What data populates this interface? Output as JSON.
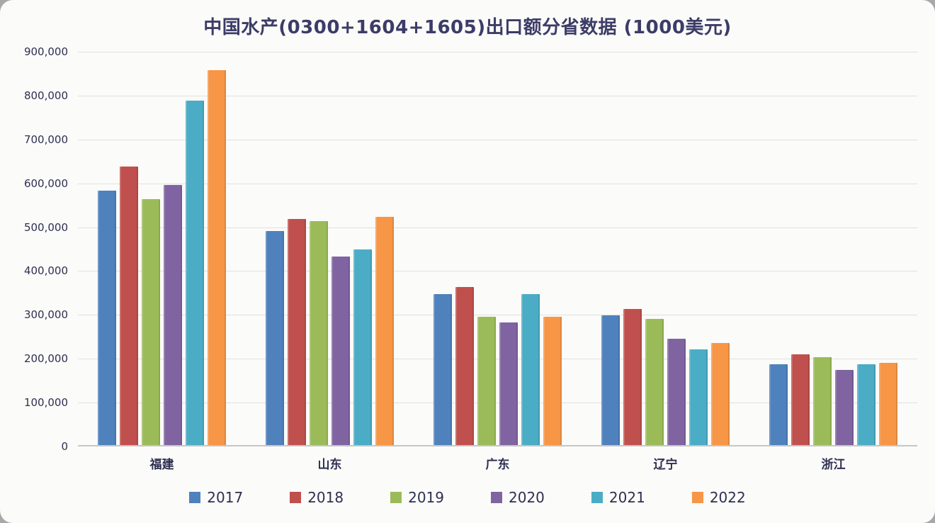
{
  "title": "中国水产(0300+1604+1605)出口额分省数据 (1000美元)",
  "chart_data": {
    "type": "bar",
    "title": "中国水产(0300+1604+1605)出口额分省数据 (1000美元)",
    "categories": [
      "福建",
      "山东",
      "广东",
      "辽宁",
      "浙江"
    ],
    "series": [
      {
        "name": "2017",
        "color": "#4F81BD",
        "values": [
          580000,
          488000,
          344000,
          295000,
          185000
        ]
      },
      {
        "name": "2018",
        "color": "#C0504D",
        "values": [
          635000,
          515000,
          360000,
          310000,
          207000
        ]
      },
      {
        "name": "2019",
        "color": "#9BBB59",
        "values": [
          560000,
          510000,
          292000,
          287000,
          200000
        ]
      },
      {
        "name": "2020",
        "color": "#8064A2",
        "values": [
          593000,
          430000,
          280000,
          242000,
          172000
        ]
      },
      {
        "name": "2021",
        "color": "#4BACC6",
        "values": [
          785000,
          446000,
          344000,
          218000,
          185000
        ]
      },
      {
        "name": "2022",
        "color": "#F79646",
        "values": [
          855000,
          520000,
          293000,
          232000,
          188000
        ]
      }
    ],
    "xlabel": "",
    "ylabel": "",
    "ylim": [
      0,
      900000
    ],
    "ytick_step": 100000,
    "yticks": [
      "900,000",
      "800,000",
      "700,000",
      "600,000",
      "500,000",
      "400,000",
      "300,000",
      "200,000",
      "100,000",
      "0"
    ],
    "grid": true,
    "legend_position": "bottom"
  }
}
